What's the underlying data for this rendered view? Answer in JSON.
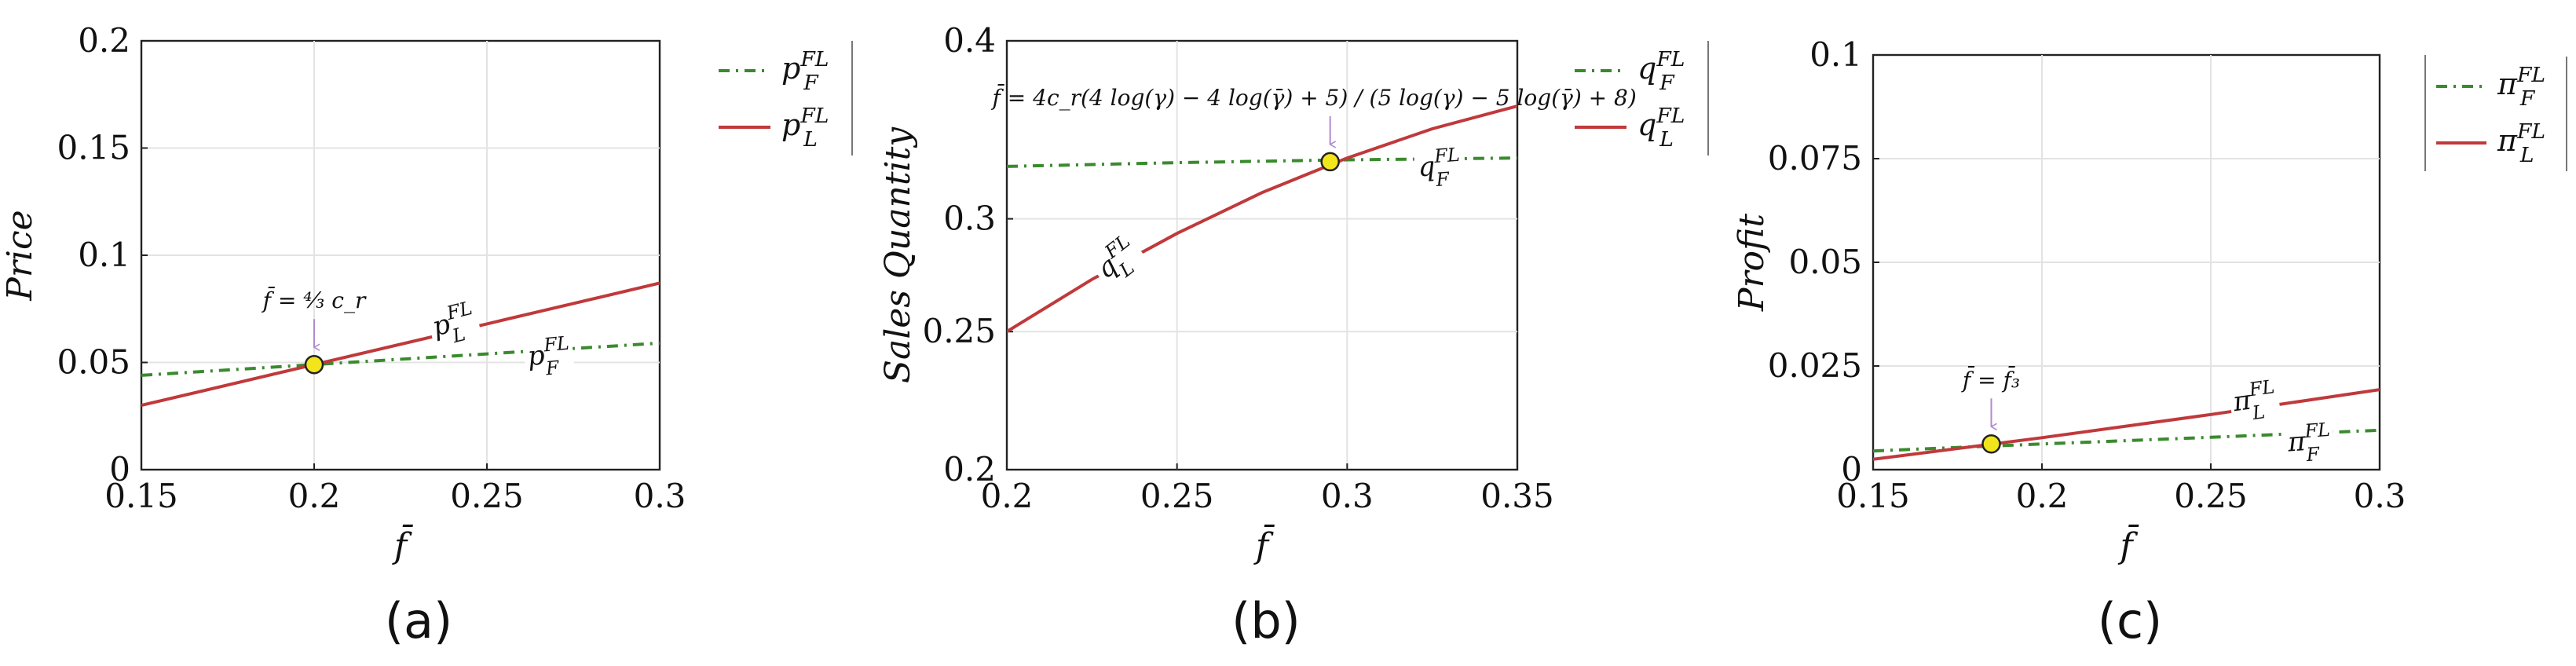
{
  "colors": {
    "firm_F": "#3a8a2e",
    "firm_L": "#c0393b",
    "marker": "#f3e51c",
    "arrow": "#b08ad0",
    "grid": "#e3e3e3"
  },
  "chart_data": [
    {
      "type": "line",
      "panel": "(a)",
      "xlabel": "f̄",
      "ylabel": "Price",
      "xlim": [
        0.15,
        0.3
      ],
      "ylim": [
        0,
        0.2
      ],
      "xticks": [
        "0.15",
        "0.2",
        "0.25",
        "0.3"
      ],
      "yticks": [
        "0",
        "0.05",
        "0.1",
        "0.15",
        "0.2"
      ],
      "grid": true,
      "legend_position": "right-outside",
      "series": [
        {
          "name": "p_F^{FL}",
          "base": "p",
          "sub": "F",
          "sup": "FL",
          "style": "dash-dot",
          "color_key": "firm_F",
          "x": [
            0.15,
            0.2,
            0.25,
            0.3
          ],
          "y": [
            0.044,
            0.049,
            0.054,
            0.059
          ]
        },
        {
          "name": "p_L^{FL}",
          "base": "p",
          "sub": "L",
          "sup": "FL",
          "style": "solid",
          "color_key": "firm_L",
          "x": [
            0.15,
            0.2,
            0.25,
            0.3
          ],
          "y": [
            0.03,
            0.049,
            0.068,
            0.087
          ]
        }
      ],
      "curve_labels": [
        {
          "series": 1,
          "x": 0.235,
          "rotate": -14,
          "dy": 0
        },
        {
          "series": 0,
          "x": 0.262,
          "rotate": -5,
          "dy": 18
        }
      ],
      "marker": {
        "x": 0.2,
        "y": 0.049,
        "label": "f̄ = ⁴⁄₃ c_r"
      }
    },
    {
      "type": "line",
      "panel": "(b)",
      "xlabel": "f̄",
      "ylabel": "Sales Quantity",
      "xlim": [
        0.2,
        0.35
      ],
      "ylim": [
        0.2,
        0.4
      ],
      "xticks": [
        "0.2",
        "0.25",
        "0.3",
        "0.35"
      ],
      "yticks": [
        "0.2",
        "0.25",
        "0.3",
        "0.4"
      ],
      "ytick_values": [
        0.2,
        0.25,
        0.3,
        0.4
      ],
      "y_scale": "log",
      "grid": true,
      "legend_position": "right-outside",
      "series": [
        {
          "name": "q_F^{FL}",
          "base": "q",
          "sub": "F",
          "sup": "FL",
          "style": "dash-dot",
          "color_key": "firm_F",
          "x": [
            0.2,
            0.25,
            0.3,
            0.35
          ],
          "y": [
            0.3265,
            0.3285,
            0.33,
            0.331
          ]
        },
        {
          "name": "q_L^{FL}",
          "base": "q",
          "sub": "L",
          "sup": "FL",
          "style": "solid",
          "color_key": "firm_L",
          "x": [
            0.2,
            0.225,
            0.25,
            0.275,
            0.3,
            0.325,
            0.35
          ],
          "y": [
            0.25,
            0.272,
            0.293,
            0.313,
            0.331,
            0.347,
            0.36
          ]
        }
      ],
      "curve_labels": [
        {
          "series": 1,
          "x": 0.229,
          "rotate": -38,
          "dy": 10
        },
        {
          "series": 0,
          "x": 0.321,
          "rotate": -4,
          "dy": 22
        }
      ],
      "marker": {
        "x": 0.295,
        "y": 0.329,
        "label": "f̄ = 4c_r(4 log(γ) − 4 log(γ̄) + 5) / (5 log(γ) − 5 log(γ̄) + 8)"
      }
    },
    {
      "type": "line",
      "panel": "(c)",
      "xlabel": "f̄",
      "ylabel": "Profit",
      "xlim": [
        0.15,
        0.3
      ],
      "ylim": [
        0,
        0.1
      ],
      "xticks": [
        "0.15",
        "0.2",
        "0.25",
        "0.3"
      ],
      "yticks": [
        "0",
        "0.025",
        "0.05",
        "0.075",
        "0.1"
      ],
      "grid": true,
      "legend_position": "right-outside",
      "series": [
        {
          "name": "π_F^{FL}",
          "base": "π",
          "sub": "F",
          "sup": "FL",
          "style": "dash-dot",
          "color_key": "firm_F",
          "x": [
            0.15,
            0.2,
            0.25,
            0.3
          ],
          "y": [
            0.0045,
            0.0062,
            0.0078,
            0.0095
          ]
        },
        {
          "name": "π_L^{FL}",
          "base": "π",
          "sub": "L",
          "sup": "FL",
          "style": "solid",
          "color_key": "firm_L",
          "x": [
            0.15,
            0.2,
            0.25,
            0.3
          ],
          "y": [
            0.0025,
            0.0077,
            0.0133,
            0.0193
          ]
        }
      ],
      "curve_labels": [
        {
          "series": 1,
          "x": 0.257,
          "rotate": -8,
          "dy": 0
        },
        {
          "series": 0,
          "x": 0.273,
          "rotate": -4,
          "dy": 22
        }
      ],
      "marker": {
        "x": 0.185,
        "y": 0.0062,
        "label": "f̄ = f̄₃"
      }
    }
  ]
}
